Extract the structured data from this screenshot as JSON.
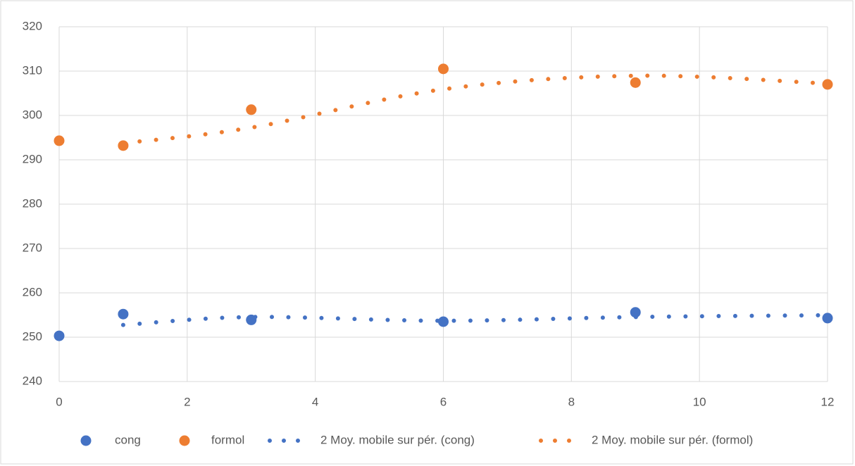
{
  "chart_data": {
    "type": "scatter",
    "xlim": [
      0,
      12
    ],
    "xticks": [
      0,
      2,
      4,
      6,
      8,
      10,
      12
    ],
    "ylim": [
      240,
      320
    ],
    "yticks": [
      240,
      250,
      260,
      270,
      280,
      290,
      300,
      310,
      320
    ],
    "grid": true,
    "legend": "bottom",
    "series": [
      {
        "name": "cong",
        "color": "#4472c4",
        "kind": "points",
        "x": [
          0,
          1,
          3,
          6,
          9,
          12
        ],
        "values": [
          250.3,
          255.2,
          253.9,
          253.5,
          255.6,
          254.3
        ]
      },
      {
        "name": "formol",
        "color": "#ed7d31",
        "kind": "points",
        "x": [
          0,
          1,
          3,
          6,
          9,
          12
        ],
        "values": [
          294.3,
          293.2,
          301.3,
          310.5,
          307.4,
          307.0
        ]
      },
      {
        "name": "2 Moy. mobile sur pér. (cong)",
        "color": "#4472c4",
        "kind": "trend",
        "x": [
          1,
          3,
          6,
          9,
          12
        ],
        "values": [
          252.75,
          254.55,
          253.7,
          254.55,
          254.95
        ]
      },
      {
        "name": "2 Moy. mobile sur pér. (formol)",
        "color": "#ed7d31",
        "kind": "trend",
        "x": [
          1,
          3,
          6,
          9,
          12
        ],
        "values": [
          293.75,
          297.25,
          305.9,
          308.95,
          307.2
        ]
      }
    ]
  }
}
